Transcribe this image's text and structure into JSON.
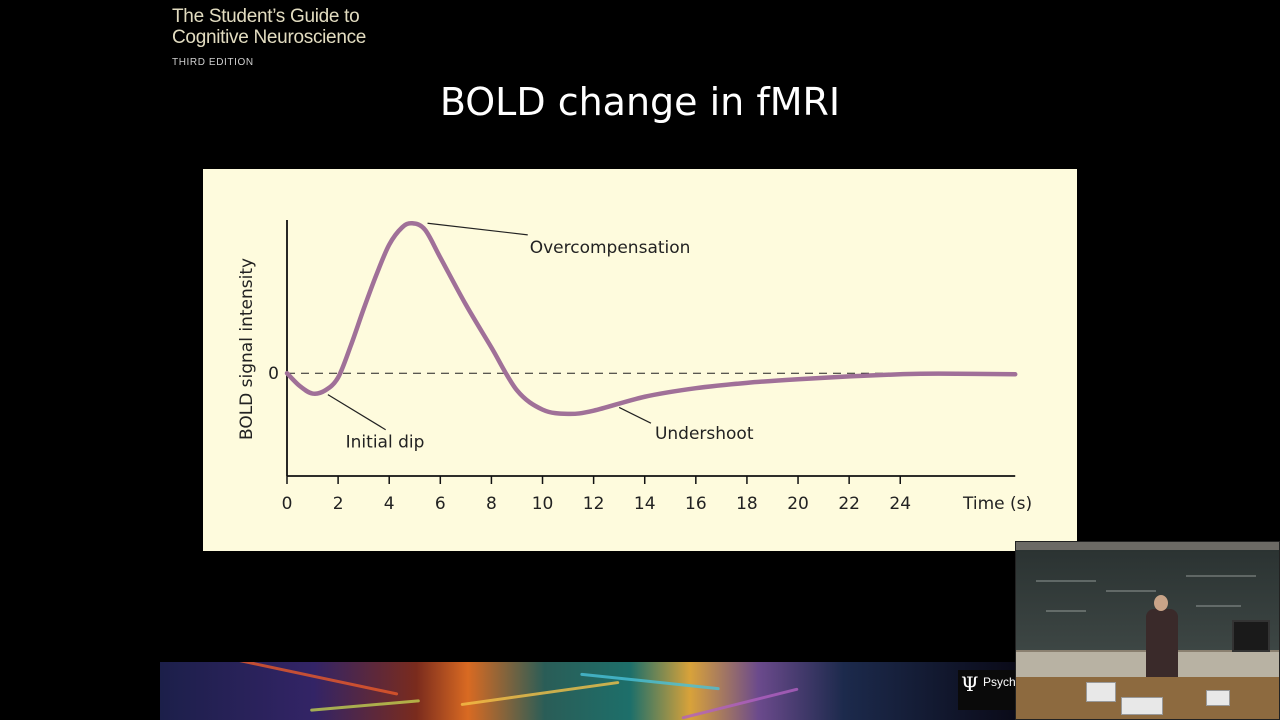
{
  "book": {
    "title_lines": [
      "The Student’s Guide to",
      "Cognitive Neuroscience"
    ],
    "edition": "THIRD EDITION"
  },
  "slide": {
    "title": "BOLD change in fMRI"
  },
  "publisher": {
    "symbol": "Ψ",
    "name": "Psych"
  },
  "colors": {
    "background": "#000000",
    "chart_panel": "#fefbdd",
    "curve": "#a07098",
    "axis": "#111111"
  },
  "chart_data": {
    "type": "line",
    "title": "BOLD change in fMRI",
    "xlabel": "Time (s)",
    "ylabel": "BOLD signal intensity",
    "xlim": [
      0,
      29
    ],
    "ylim": [
      -4.8,
      7.2
    ],
    "x_ticks": [
      0,
      2,
      4,
      6,
      8,
      10,
      12,
      14,
      16,
      18,
      20,
      22,
      24
    ],
    "y_tick_labels": [
      {
        "value": 0,
        "label": "0"
      }
    ],
    "baseline": {
      "value": 0,
      "style": "dashed"
    },
    "grid": false,
    "legend": "none",
    "series": [
      {
        "points": [
          [
            0,
            0
          ],
          [
            0.5,
            -0.6
          ],
          [
            1.0,
            -0.95
          ],
          [
            1.5,
            -0.8
          ],
          [
            2.0,
            -0.2
          ],
          [
            2.5,
            1.3
          ],
          [
            3.0,
            3.0
          ],
          [
            3.5,
            4.6
          ],
          [
            4.0,
            6.0
          ],
          [
            4.5,
            6.8
          ],
          [
            4.9,
            7.0
          ],
          [
            5.4,
            6.7
          ],
          [
            6.0,
            5.4
          ],
          [
            7.0,
            3.2
          ],
          [
            8.0,
            1.2
          ],
          [
            9.0,
            -0.8
          ],
          [
            10.0,
            -1.7
          ],
          [
            11.0,
            -1.9
          ],
          [
            12.0,
            -1.75
          ],
          [
            14.0,
            -1.1
          ],
          [
            16.0,
            -0.7
          ],
          [
            18.0,
            -0.45
          ],
          [
            20.0,
            -0.28
          ],
          [
            22.0,
            -0.15
          ],
          [
            24.0,
            -0.05
          ],
          [
            25.5,
            -0.02
          ],
          [
            28.5,
            -0.05
          ]
        ]
      }
    ],
    "annotations": [
      {
        "text": "Overcompensation",
        "x": 5.5,
        "y": 7.0,
        "tx": 9.5,
        "ty": 5.9
      },
      {
        "text": "Initial dip",
        "x": 1.6,
        "y": -1.0,
        "tx": 3.0,
        "ty": -3.2
      },
      {
        "text": "Undershoot",
        "x": 13.0,
        "y": -1.6,
        "tx": 14.4,
        "ty": -2.8
      }
    ]
  }
}
